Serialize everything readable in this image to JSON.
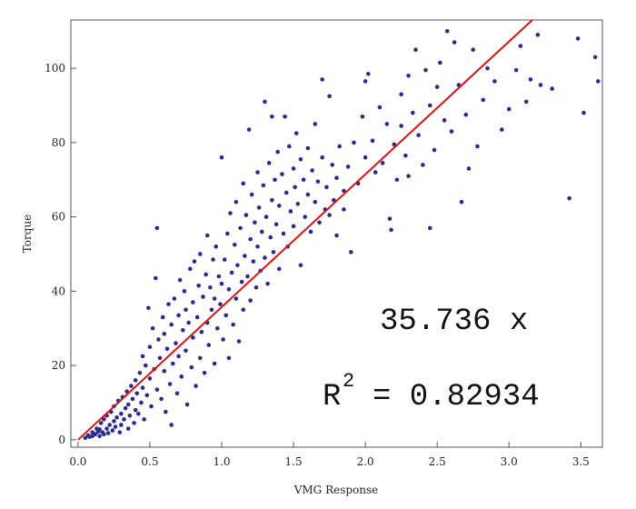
{
  "chart_data": {
    "type": "scatter",
    "xlabel": "VMG Response",
    "ylabel": "Torque",
    "xlim": [
      -0.05,
      3.65
    ],
    "ylim": [
      -2,
      113
    ],
    "xticks": [
      "0.0",
      "0.5",
      "1.0",
      "1.5",
      "2.0",
      "2.5",
      "3.0",
      "3.5"
    ],
    "yticks": [
      "0",
      "20",
      "40",
      "60",
      "80",
      "100"
    ],
    "grid": false,
    "series": [
      {
        "kind": "points",
        "color": "#2e2a8c",
        "points": [
          [
            0.05,
            0.5
          ],
          [
            0.07,
            1.2
          ],
          [
            0.08,
            0.8
          ],
          [
            0.1,
            2.0
          ],
          [
            0.1,
            1.0
          ],
          [
            0.12,
            1.5
          ],
          [
            0.13,
            3.0
          ],
          [
            0.14,
            2.2
          ],
          [
            0.15,
            1.0
          ],
          [
            0.15,
            2.8
          ],
          [
            0.16,
            4.5
          ],
          [
            0.17,
            2.0
          ],
          [
            0.18,
            1.5
          ],
          [
            0.18,
            5.5
          ],
          [
            0.2,
            3.0
          ],
          [
            0.2,
            6.5
          ],
          [
            0.21,
            1.8
          ],
          [
            0.22,
            4.0
          ],
          [
            0.23,
            7.5
          ],
          [
            0.24,
            2.5
          ],
          [
            0.25,
            5.0
          ],
          [
            0.25,
            9.0
          ],
          [
            0.26,
            3.5
          ],
          [
            0.27,
            6.0
          ],
          [
            0.28,
            10.5
          ],
          [
            0.29,
            2.0
          ],
          [
            0.3,
            7.0
          ],
          [
            0.3,
            4.0
          ],
          [
            0.31,
            11.5
          ],
          [
            0.32,
            5.5
          ],
          [
            0.33,
            8.5
          ],
          [
            0.34,
            13.0
          ],
          [
            0.35,
            3.0
          ],
          [
            0.35,
            9.5
          ],
          [
            0.36,
            6.5
          ],
          [
            0.37,
            14.5
          ],
          [
            0.38,
            11.0
          ],
          [
            0.39,
            4.5
          ],
          [
            0.4,
            8.0
          ],
          [
            0.4,
            16.0
          ],
          [
            0.41,
            12.5
          ],
          [
            0.42,
            7.0
          ],
          [
            0.43,
            18.0
          ],
          [
            0.44,
            10.0
          ],
          [
            0.45,
            22.5
          ],
          [
            0.45,
            14.0
          ],
          [
            0.46,
            5.5
          ],
          [
            0.47,
            20.0
          ],
          [
            0.48,
            12.0
          ],
          [
            0.49,
            35.5
          ],
          [
            0.5,
            25.0
          ],
          [
            0.5,
            16.5
          ],
          [
            0.51,
            9.0
          ],
          [
            0.52,
            30.0
          ],
          [
            0.53,
            19.0
          ],
          [
            0.54,
            43.5
          ],
          [
            0.55,
            13.5
          ],
          [
            0.55,
            57.0
          ],
          [
            0.56,
            27.0
          ],
          [
            0.57,
            22.0
          ],
          [
            0.58,
            11.0
          ],
          [
            0.59,
            33.0
          ],
          [
            0.6,
            18.5
          ],
          [
            0.6,
            28.5
          ],
          [
            0.61,
            7.5
          ],
          [
            0.62,
            24.5
          ],
          [
            0.63,
            36.5
          ],
          [
            0.64,
            15.0
          ],
          [
            0.65,
            31.0
          ],
          [
            0.65,
            4.0
          ],
          [
            0.66,
            20.5
          ],
          [
            0.67,
            38.0
          ],
          [
            0.68,
            26.0
          ],
          [
            0.69,
            12.5
          ],
          [
            0.7,
            33.5
          ],
          [
            0.7,
            22.5
          ],
          [
            0.71,
            43.0
          ],
          [
            0.72,
            17.0
          ],
          [
            0.73,
            29.5
          ],
          [
            0.74,
            40.0
          ],
          [
            0.75,
            24.0
          ],
          [
            0.75,
            35.0
          ],
          [
            0.76,
            9.5
          ],
          [
            0.77,
            31.5
          ],
          [
            0.78,
            46.0
          ],
          [
            0.79,
            19.5
          ],
          [
            0.8,
            37.0
          ],
          [
            0.8,
            27.5
          ],
          [
            0.81,
            48.0
          ],
          [
            0.82,
            14.5
          ],
          [
            0.83,
            33.0
          ],
          [
            0.84,
            41.5
          ],
          [
            0.85,
            22.0
          ],
          [
            0.85,
            50.0
          ],
          [
            0.86,
            29.0
          ],
          [
            0.87,
            38.5
          ],
          [
            0.88,
            18.0
          ],
          [
            0.89,
            44.5
          ],
          [
            0.9,
            31.5
          ],
          [
            0.9,
            55.0
          ],
          [
            0.91,
            25.5
          ],
          [
            0.92,
            41.0
          ],
          [
            0.93,
            35.0
          ],
          [
            0.94,
            48.5
          ],
          [
            0.95,
            20.5
          ],
          [
            0.95,
            38.0
          ],
          [
            0.96,
            52.0
          ],
          [
            0.97,
            30.0
          ],
          [
            0.98,
            44.0
          ],
          [
            0.99,
            36.5
          ],
          [
            1.0,
            76.0
          ],
          [
            1.0,
            42.0
          ],
          [
            1.01,
            27.0
          ],
          [
            1.02,
            48.5
          ],
          [
            1.03,
            33.5
          ],
          [
            1.04,
            55.5
          ],
          [
            1.05,
            40.5
          ],
          [
            1.05,
            22.0
          ],
          [
            1.06,
            61.0
          ],
          [
            1.07,
            45.0
          ],
          [
            1.08,
            31.0
          ],
          [
            1.09,
            52.5
          ],
          [
            1.1,
            38.0
          ],
          [
            1.1,
            64.0
          ],
          [
            1.11,
            47.0
          ],
          [
            1.12,
            26.5
          ],
          [
            1.13,
            57.0
          ],
          [
            1.14,
            42.5
          ],
          [
            1.15,
            35.0
          ],
          [
            1.15,
            69.0
          ],
          [
            1.16,
            49.5
          ],
          [
            1.17,
            60.5
          ],
          [
            1.18,
            44.0
          ],
          [
            1.19,
            83.5
          ],
          [
            1.2,
            37.5
          ],
          [
            1.2,
            54.0
          ],
          [
            1.21,
            66.0
          ],
          [
            1.22,
            48.0
          ],
          [
            1.23,
            58.5
          ],
          [
            1.24,
            41.0
          ],
          [
            1.25,
            72.0
          ],
          [
            1.25,
            52.0
          ],
          [
            1.26,
            62.5
          ],
          [
            1.27,
            45.5
          ],
          [
            1.28,
            56.0
          ],
          [
            1.29,
            68.5
          ],
          [
            1.3,
            49.0
          ],
          [
            1.3,
            91.0
          ],
          [
            1.31,
            60.0
          ],
          [
            1.32,
            42.0
          ],
          [
            1.33,
            74.5
          ],
          [
            1.34,
            54.5
          ],
          [
            1.35,
            64.5
          ],
          [
            1.35,
            87.0
          ],
          [
            1.36,
            50.5
          ],
          [
            1.37,
            70.0
          ],
          [
            1.38,
            58.0
          ],
          [
            1.39,
            77.5
          ],
          [
            1.4,
            46.0
          ],
          [
            1.4,
            63.0
          ],
          [
            1.42,
            71.5
          ],
          [
            1.43,
            55.5
          ],
          [
            1.44,
            87.0
          ],
          [
            1.45,
            66.5
          ],
          [
            1.46,
            52.0
          ],
          [
            1.47,
            79.0
          ],
          [
            1.48,
            61.5
          ],
          [
            1.5,
            73.0
          ],
          [
            1.5,
            57.5
          ],
          [
            1.51,
            68.0
          ],
          [
            1.52,
            82.5
          ],
          [
            1.53,
            63.5
          ],
          [
            1.55,
            75.5
          ],
          [
            1.55,
            47.0
          ],
          [
            1.57,
            70.0
          ],
          [
            1.58,
            60.0
          ],
          [
            1.6,
            78.5
          ],
          [
            1.6,
            66.0
          ],
          [
            1.62,
            56.0
          ],
          [
            1.63,
            72.5
          ],
          [
            1.65,
            64.0
          ],
          [
            1.65,
            85.0
          ],
          [
            1.67,
            69.5
          ],
          [
            1.68,
            58.5
          ],
          [
            1.7,
            76.0
          ],
          [
            1.7,
            97.0
          ],
          [
            1.72,
            62.0
          ],
          [
            1.73,
            68.0
          ],
          [
            1.75,
            60.5
          ],
          [
            1.75,
            92.5
          ],
          [
            1.77,
            74.0
          ],
          [
            1.78,
            64.5
          ],
          [
            1.8,
            70.5
          ],
          [
            1.8,
            55.0
          ],
          [
            1.82,
            79.0
          ],
          [
            1.85,
            67.0
          ],
          [
            1.85,
            62.0
          ],
          [
            1.88,
            73.5
          ],
          [
            1.9,
            50.5
          ],
          [
            1.92,
            80.0
          ],
          [
            1.95,
            69.0
          ],
          [
            1.98,
            87.0
          ],
          [
            2.0,
            96.5
          ],
          [
            2.0,
            76.0
          ],
          [
            2.02,
            98.5
          ],
          [
            2.05,
            80.5
          ],
          [
            2.07,
            72.0
          ],
          [
            2.1,
            89.5
          ],
          [
            2.12,
            74.5
          ],
          [
            2.15,
            85.0
          ],
          [
            2.17,
            59.5
          ],
          [
            2.18,
            56.5
          ],
          [
            2.2,
            79.5
          ],
          [
            2.22,
            70.0
          ],
          [
            2.25,
            93.0
          ],
          [
            2.25,
            84.5
          ],
          [
            2.28,
            76.5
          ],
          [
            2.3,
            98.0
          ],
          [
            2.3,
            71.0
          ],
          [
            2.33,
            88.0
          ],
          [
            2.35,
            105.0
          ],
          [
            2.37,
            82.0
          ],
          [
            2.4,
            74.0
          ],
          [
            2.42,
            99.5
          ],
          [
            2.45,
            90.0
          ],
          [
            2.45,
            57.0
          ],
          [
            2.48,
            78.0
          ],
          [
            2.5,
            95.0
          ],
          [
            2.52,
            101.5
          ],
          [
            2.55,
            86.0
          ],
          [
            2.57,
            110.0
          ],
          [
            2.6,
            83.0
          ],
          [
            2.62,
            107.0
          ],
          [
            2.65,
            95.5
          ],
          [
            2.67,
            64.0
          ],
          [
            2.7,
            87.5
          ],
          [
            2.72,
            73.0
          ],
          [
            2.75,
            105.0
          ],
          [
            2.78,
            79.0
          ],
          [
            2.82,
            91.5
          ],
          [
            2.85,
            100.0
          ],
          [
            2.9,
            96.5
          ],
          [
            2.95,
            83.5
          ],
          [
            3.0,
            89.0
          ],
          [
            3.05,
            99.5
          ],
          [
            3.08,
            106.0
          ],
          [
            3.12,
            91.0
          ],
          [
            3.15,
            97.0
          ],
          [
            3.2,
            109.0
          ],
          [
            3.22,
            95.5
          ],
          [
            3.3,
            94.5
          ],
          [
            3.42,
            65.0
          ],
          [
            3.48,
            108.0
          ],
          [
            3.52,
            88.0
          ],
          [
            3.6,
            103.0
          ],
          [
            3.62,
            96.5
          ]
        ]
      },
      {
        "kind": "fit-line",
        "color": "#e01010",
        "slope": 35.736
      }
    ],
    "annotations": {
      "equation": "35.736 x",
      "r2_label": "R",
      "r2_exponent": "2",
      "r2_value": "= 0.82934"
    }
  }
}
